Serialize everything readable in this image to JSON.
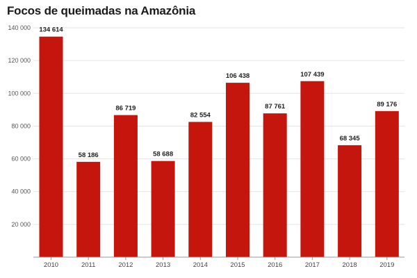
{
  "chart_data": {
    "type": "bar",
    "title": "Focos de queimadas na Amazônia",
    "xlabel": "",
    "ylabel": "",
    "categories": [
      "2010",
      "2011",
      "2012",
      "2013",
      "2014",
      "2015",
      "2016",
      "2017",
      "2018",
      "2019"
    ],
    "values": [
      134614,
      58186,
      86719,
      58688,
      82554,
      106438,
      87761,
      107439,
      68345,
      89176
    ],
    "value_labels": [
      "134 614",
      "58 186",
      "86 719",
      "58 688",
      "82 554",
      "106 438",
      "87 761",
      "107 439",
      "68 345",
      "89 176"
    ],
    "ylim": [
      0,
      140000
    ],
    "yticks": [
      20000,
      40000,
      60000,
      80000,
      100000,
      120000,
      140000
    ],
    "ytick_labels": [
      "20 000",
      "40 000",
      "60 000",
      "80 000",
      "100 000",
      "120 000",
      "140 000"
    ],
    "grid": true,
    "bar_color": "#c4160c"
  }
}
